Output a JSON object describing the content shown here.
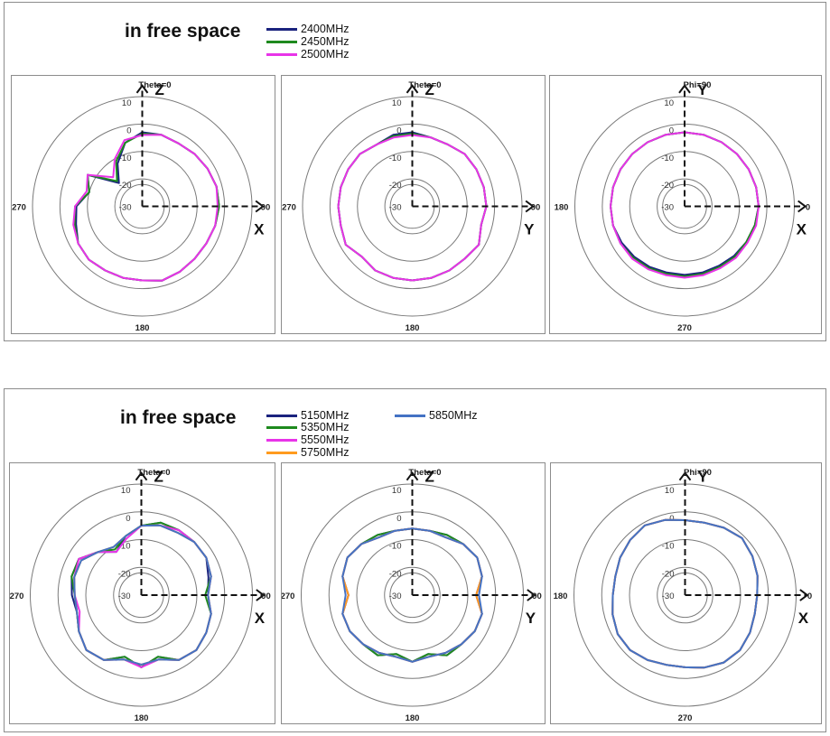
{
  "groups": [
    {
      "title": "in free space",
      "legend": [
        {
          "label": "2400MHz",
          "color": "#1a237e"
        },
        {
          "label": "2450MHz",
          "color": "#1e8a1e"
        },
        {
          "label": "2500MHz",
          "color": "#e834e8"
        }
      ]
    },
    {
      "title": "in free space",
      "legend": [
        {
          "label": "5150MHz",
          "color": "#1a237e"
        },
        {
          "label": "5350MHz",
          "color": "#1e8a1e"
        },
        {
          "label": "5550MHz",
          "color": "#e834e8"
        },
        {
          "label": "5750MHz",
          "color": "#ff9b1e"
        },
        {
          "label": "5850MHz",
          "color": "#4472c4"
        }
      ]
    }
  ],
  "chart_data": [
    {
      "type": "polar",
      "group": 0,
      "header": "Theta=0",
      "angle_labels": {
        "top": "",
        "right": "90",
        "bottom": "180",
        "left": "270"
      },
      "axis_labels": {
        "up": "Z",
        "right": "X"
      },
      "radial_ticks": [
        "10",
        "0",
        "-10",
        "-20",
        "-30"
      ],
      "rlim": [
        -30,
        10
      ],
      "angles_deg": [
        0,
        15,
        30,
        45,
        60,
        75,
        90,
        105,
        120,
        135,
        150,
        165,
        180,
        195,
        210,
        225,
        240,
        255,
        270,
        285,
        300,
        315,
        330,
        345
      ],
      "series": [
        {
          "name": "2400MHz",
          "values": [
            -3,
            -3,
            -3.5,
            -3,
            -2.5,
            -2,
            -2,
            -2.5,
            -3,
            -3,
            -2.5,
            -2,
            -3,
            -3,
            -3,
            -2.5,
            -3,
            -5,
            -6,
            -10,
            -7,
            -18,
            -12,
            -6
          ]
        },
        {
          "name": "2450MHz",
          "values": [
            -3.5,
            -3,
            -3.5,
            -3,
            -2.5,
            -2,
            -2,
            -2.5,
            -3,
            -3,
            -2.5,
            -2,
            -3,
            -3,
            -3,
            -2.5,
            -3,
            -4.5,
            -5.5,
            -10,
            -7,
            -17,
            -11,
            -6
          ]
        },
        {
          "name": "2500MHz",
          "values": [
            -4,
            -3,
            -3.5,
            -3,
            -2.5,
            -2,
            -2.5,
            -2.5,
            -3,
            -3,
            -2.5,
            -2,
            -3,
            -3,
            -3,
            -2.5,
            -3,
            -4,
            -5.5,
            -9,
            -7,
            -15,
            -10,
            -5
          ]
        }
      ]
    },
    {
      "type": "polar",
      "group": 0,
      "header": "Theta=0",
      "angle_labels": {
        "top": "",
        "right": "90",
        "bottom": "180",
        "left": "270"
      },
      "axis_labels": {
        "up": "Z",
        "right": "Y"
      },
      "radial_ticks": [
        "10",
        "0",
        "-10",
        "-20",
        "-30"
      ],
      "rlim": [
        -30,
        10
      ],
      "angles_deg": [
        0,
        15,
        30,
        45,
        60,
        75,
        90,
        105,
        120,
        135,
        150,
        165,
        180,
        195,
        210,
        225,
        240,
        255,
        270,
        285,
        300,
        315,
        330,
        345
      ],
      "series": [
        {
          "name": "2400MHz",
          "values": [
            -3,
            -4,
            -4,
            -3,
            -3,
            -3,
            -3,
            -4,
            -2,
            -3,
            -3,
            -3,
            -3,
            -3,
            -3,
            -4,
            -2,
            -3,
            -3,
            -3,
            -3,
            -3,
            -4,
            -3
          ]
        },
        {
          "name": "2450MHz",
          "values": [
            -3.5,
            -4,
            -4,
            -3,
            -3,
            -3,
            -3,
            -4,
            -2,
            -3,
            -3,
            -3,
            -3,
            -3,
            -3,
            -4,
            -2,
            -3,
            -3,
            -3,
            -3,
            -3,
            -4,
            -3.5
          ]
        },
        {
          "name": "2500MHz",
          "values": [
            -4,
            -4,
            -4,
            -3,
            -3,
            -3,
            -3,
            -4,
            -2,
            -3,
            -3,
            -3,
            -3,
            -3,
            -3,
            -4,
            -2,
            -3,
            -3,
            -3,
            -3,
            -3,
            -4,
            -4
          ]
        }
      ]
    },
    {
      "type": "polar",
      "group": 0,
      "header": "Phi=90",
      "angle_labels": {
        "top": "",
        "right": "0",
        "bottom": "270",
        "left": "180"
      },
      "axis_labels": {
        "up": "Y",
        "right": "X"
      },
      "radial_ticks": [
        "10",
        "0",
        "-10",
        "-20",
        "-30"
      ],
      "rlim": [
        -30,
        10
      ],
      "angles_deg": [
        0,
        15,
        30,
        45,
        60,
        75,
        90,
        105,
        120,
        135,
        150,
        165,
        180,
        195,
        210,
        225,
        240,
        255,
        270,
        285,
        300,
        315,
        330,
        345
      ],
      "series": [
        {
          "name": "2400MHz",
          "values": [
            -3,
            -3,
            -3,
            -3,
            -3,
            -3,
            -3,
            -3.5,
            -4,
            -4.5,
            -5,
            -5,
            -5,
            -5,
            -4.5,
            -4,
            -3.5,
            -3,
            -3,
            -3,
            -3,
            -3,
            -3,
            -3
          ]
        },
        {
          "name": "2450MHz",
          "values": [
            -3,
            -3,
            -3,
            -3,
            -3,
            -3,
            -3,
            -3.5,
            -4,
            -4,
            -4.5,
            -4.5,
            -4.5,
            -4.5,
            -4,
            -3.5,
            -3,
            -3,
            -3,
            -3,
            -3,
            -3,
            -3,
            -3
          ]
        },
        {
          "name": "2500MHz",
          "values": [
            -3,
            -3,
            -3,
            -3,
            -3,
            -3,
            -3,
            -3,
            -3.5,
            -3.5,
            -4,
            -4,
            -4,
            -4,
            -3.5,
            -3,
            -3,
            -3,
            -3,
            -3,
            -3,
            -3,
            -3,
            -3
          ]
        }
      ]
    },
    {
      "type": "polar",
      "group": 1,
      "header": "Theta=0",
      "angle_labels": {
        "top": "",
        "right": "90",
        "bottom": "180",
        "left": "270"
      },
      "axis_labels": {
        "up": "Z",
        "right": "X"
      },
      "radial_ticks": [
        "10",
        "0",
        "-10",
        "-20",
        "-30"
      ],
      "rlim": [
        -30,
        10
      ],
      "angles_deg": [
        0,
        15,
        30,
        45,
        60,
        75,
        90,
        105,
        120,
        135,
        150,
        165,
        180,
        195,
        210,
        225,
        240,
        255,
        270,
        285,
        300,
        315,
        330,
        345
      ],
      "series": [
        {
          "name": "5150MHz",
          "values": [
            -5,
            -3,
            -3,
            -3,
            -3,
            -5,
            -6,
            -4,
            -3,
            -2,
            -3,
            -7,
            -4,
            -7,
            -3,
            -2,
            -4,
            -6,
            -5,
            -4,
            -4,
            -8,
            -12,
            -8
          ]
        },
        {
          "name": "5350MHz",
          "values": [
            -5,
            -3,
            -3,
            -3,
            -3,
            -4,
            -7,
            -4,
            -3,
            -2,
            -3,
            -7,
            -4,
            -7,
            -3,
            -2,
            -4,
            -6,
            -6,
            -4,
            -4,
            -8,
            -11,
            -8
          ]
        },
        {
          "name": "5550MHz",
          "values": [
            -5,
            -4,
            -3,
            -3,
            -3,
            -4,
            -6,
            -4,
            -3,
            -2,
            -3,
            -6,
            -4,
            -6,
            -3,
            -2,
            -4,
            -7,
            -6,
            -5,
            -4,
            -8,
            -12,
            -9
          ]
        },
        {
          "name": "5750MHz",
          "values": [
            -5,
            -4,
            -4,
            -3,
            -3,
            -4,
            -6,
            -4,
            -3,
            -2,
            -3,
            -6,
            -5,
            -6,
            -3,
            -2,
            -4,
            -6,
            -6,
            -5,
            -5,
            -8,
            -10,
            -8
          ]
        },
        {
          "name": "5850MHz",
          "values": [
            -5,
            -4,
            -4,
            -3,
            -3,
            -4,
            -6,
            -4,
            -3,
            -2,
            -3,
            -6,
            -5,
            -6,
            -3,
            -2,
            -4,
            -6,
            -6,
            -5,
            -5,
            -8,
            -10,
            -8
          ]
        }
      ]
    },
    {
      "type": "polar",
      "group": 1,
      "header": "Theta=0",
      "angle_labels": {
        "top": "",
        "right": "90",
        "bottom": "180",
        "left": "270"
      },
      "axis_labels": {
        "up": "Z",
        "right": "Y"
      },
      "radial_ticks": [
        "10",
        "0",
        "-10",
        "-20",
        "-30"
      ],
      "rlim": [
        -30,
        10
      ],
      "angles_deg": [
        0,
        15,
        30,
        45,
        60,
        75,
        90,
        105,
        120,
        135,
        150,
        165,
        180,
        195,
        210,
        225,
        240,
        255,
        270,
        285,
        300,
        315,
        330,
        345
      ],
      "series": [
        {
          "name": "5150MHz",
          "values": [
            -6,
            -6,
            -5,
            -4,
            -3,
            -4,
            -7,
            -4,
            -4,
            -5,
            -5,
            -8,
            -6,
            -8,
            -5,
            -5,
            -4,
            -4,
            -7,
            -4,
            -3,
            -4,
            -5,
            -6
          ]
        },
        {
          "name": "5350MHz",
          "values": [
            -6,
            -6,
            -5,
            -4,
            -3,
            -4,
            -7,
            -4,
            -4,
            -5,
            -5,
            -8,
            -6,
            -8,
            -5,
            -5,
            -4,
            -4,
            -7,
            -4,
            -3,
            -4,
            -5,
            -6
          ]
        },
        {
          "name": "5550MHz",
          "values": [
            -6,
            -6,
            -6,
            -4,
            -3,
            -4,
            -7,
            -4,
            -4,
            -5,
            -6,
            -7,
            -6,
            -7,
            -6,
            -5,
            -4,
            -4,
            -7,
            -4,
            -3,
            -4,
            -6,
            -6
          ]
        },
        {
          "name": "5750MHz",
          "values": [
            -6,
            -6,
            -6,
            -4,
            -3,
            -4,
            -7,
            -4,
            -4,
            -5,
            -6,
            -7,
            -6,
            -7,
            -6,
            -5,
            -4,
            -4,
            -7,
            -4,
            -3,
            -4,
            -6,
            -6
          ]
        },
        {
          "name": "5850MHz",
          "values": [
            -6,
            -6,
            -6,
            -4,
            -3,
            -4,
            -6,
            -4,
            -4,
            -5,
            -6,
            -7,
            -6,
            -7,
            -6,
            -5,
            -4,
            -4,
            -6,
            -4,
            -3,
            -4,
            -6,
            -6
          ]
        }
      ]
    },
    {
      "type": "polar",
      "group": 1,
      "header": "Phi=90",
      "angle_labels": {
        "top": "",
        "right": "0",
        "bottom": "270",
        "left": "180"
      },
      "axis_labels": {
        "up": "Y",
        "right": "X"
      },
      "radial_ticks": [
        "10",
        "0",
        "-10",
        "-20",
        "-30"
      ],
      "rlim": [
        -30,
        10
      ],
      "angles_deg": [
        0,
        15,
        30,
        45,
        60,
        75,
        90,
        105,
        120,
        135,
        150,
        165,
        180,
        195,
        210,
        225,
        240,
        255,
        270,
        285,
        300,
        315,
        330,
        345
      ],
      "series": [
        {
          "name": "5150MHz",
          "values": [
            -3,
            -3,
            -2,
            -1,
            -2,
            -3,
            -4,
            -4,
            -3,
            -2,
            -2,
            -3,
            -4,
            -4,
            -3,
            -2,
            -2,
            -3,
            -4,
            -4,
            -3,
            -2,
            -1,
            -2
          ]
        },
        {
          "name": "5350MHz",
          "values": [
            -3,
            -3,
            -2,
            -1,
            -2,
            -3,
            -4,
            -4,
            -3,
            -2,
            -2,
            -3,
            -4,
            -4,
            -3,
            -2,
            -2,
            -3,
            -4,
            -4,
            -3,
            -2,
            -1,
            -2
          ]
        },
        {
          "name": "5550MHz",
          "values": [
            -3,
            -3,
            -2,
            -1,
            -2,
            -3,
            -4,
            -4,
            -3,
            -2,
            -2,
            -3,
            -4,
            -4,
            -3,
            -2,
            -2,
            -3,
            -4,
            -4,
            -3,
            -2,
            -1,
            -2
          ]
        },
        {
          "name": "5750MHz",
          "values": [
            -3,
            -3,
            -2,
            -1,
            -2,
            -3,
            -4,
            -4,
            -3,
            -2,
            -2,
            -3,
            -4,
            -4,
            -3,
            -2,
            -2,
            -3,
            -4,
            -4,
            -3,
            -2,
            -1,
            -2
          ]
        },
        {
          "name": "5850MHz",
          "values": [
            -3,
            -3,
            -2,
            -1,
            -2,
            -3,
            -4,
            -4,
            -3,
            -2,
            -2,
            -3,
            -4,
            -4,
            -3,
            -2,
            -2,
            -3,
            -4,
            -4,
            -3,
            -2,
            -1,
            -2
          ]
        }
      ]
    }
  ]
}
